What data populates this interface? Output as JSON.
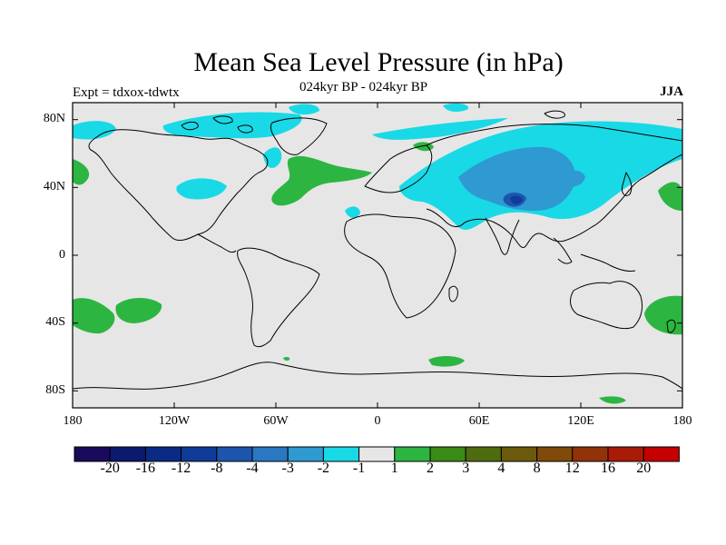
{
  "map": {
    "title": "Mean Sea Level Pressure (in hPa)",
    "subtitle": "024kyr BP - 024kyr BP",
    "experiment": "Expt = tdxox-tdwtx",
    "season": "JJA",
    "lat_labels": [
      "80N",
      "40N",
      "0",
      "40S",
      "80S"
    ],
    "lon_labels": [
      "180",
      "120W",
      "60W",
      "0",
      "60E",
      "120E",
      "180"
    ]
  },
  "colorbar": {
    "colors": [
      "#1a0a5c",
      "#0b1a6e",
      "#0a2a84",
      "#103c99",
      "#1d55ad",
      "#2a77c2",
      "#2f99d1",
      "#19d9e6",
      "#e6e6e6",
      "#2db542",
      "#3a8a18",
      "#4f6b10",
      "#6b5a0c",
      "#7f4a0a",
      "#923209",
      "#a91b08",
      "#c40000"
    ],
    "labels": [
      "-20",
      "-16",
      "-12",
      "-8",
      "-4",
      "-3",
      "-2",
      "-1",
      "1",
      "2",
      "3",
      "4",
      "8",
      "12",
      "16",
      "20"
    ]
  }
}
